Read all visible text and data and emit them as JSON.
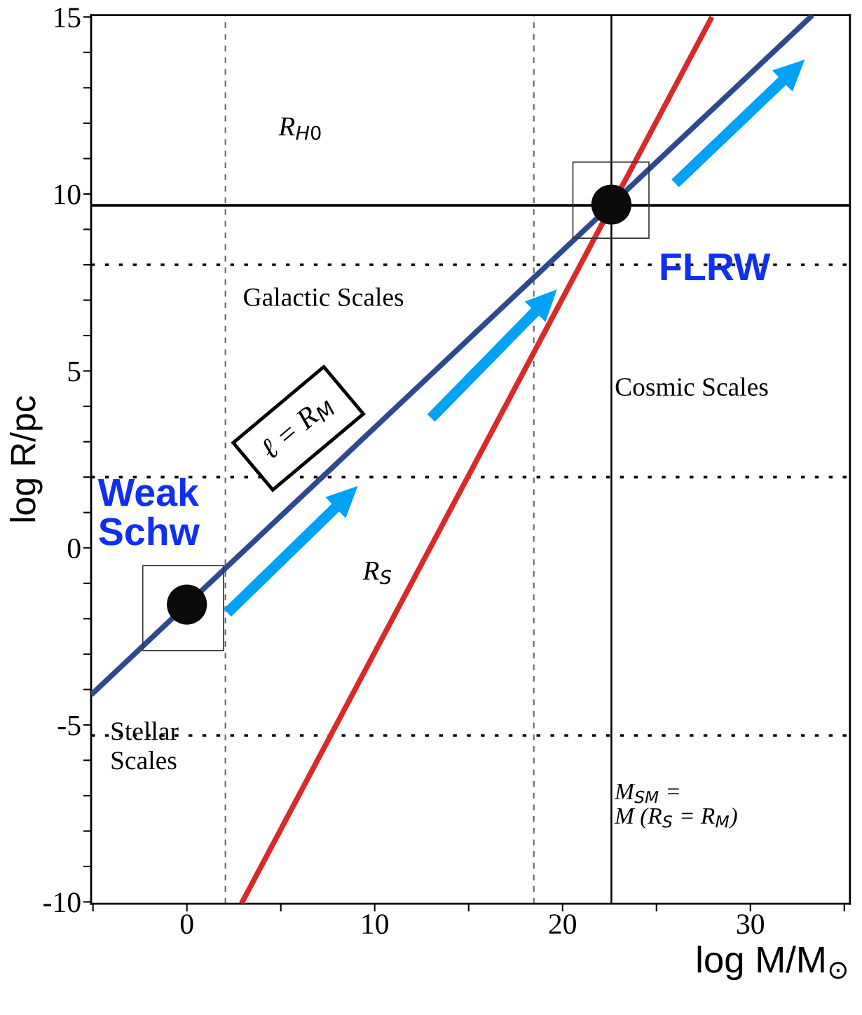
{
  "chart_data": {
    "type": "line",
    "xlabel": "log M/M$_{⊙}$",
    "ylabel": "log R/pc",
    "xlim": [
      -5.1,
      35.3
    ],
    "ylim": [
      -10.05,
      15.05
    ],
    "xticks": [
      {
        "value": -5,
        "label": null
      },
      0,
      {
        "value": 5,
        "label": null
      },
      10,
      {
        "value": 15,
        "label": null
      },
      20,
      {
        "value": 25,
        "label": null
      },
      30,
      {
        "value": 35,
        "label": null
      }
    ],
    "yticks": [
      -10,
      {
        "value": -9,
        "label": null
      },
      {
        "value": -8,
        "label": null
      },
      {
        "value": -7,
        "label": null
      },
      {
        "value": -6,
        "label": null
      },
      -5,
      {
        "value": -4,
        "label": null
      },
      {
        "value": -3,
        "label": null
      },
      {
        "value": -2,
        "label": null
      },
      {
        "value": -1,
        "label": null
      },
      0,
      {
        "value": 1,
        "label": null
      },
      {
        "value": 2,
        "label": null
      },
      {
        "value": 3,
        "label": null
      },
      {
        "value": 4,
        "label": null
      },
      5,
      {
        "value": 6,
        "label": null
      },
      {
        "value": 7,
        "label": null
      },
      {
        "value": 8,
        "label": null
      },
      {
        "value": 9,
        "label": null
      },
      10,
      {
        "value": 11,
        "label": null
      },
      {
        "value": 12,
        "label": null
      },
      {
        "value": 13,
        "label": null
      },
      {
        "value": 14,
        "label": null
      },
      15
    ],
    "grid": false,
    "legend": false,
    "series": [
      {
        "color": "#2e4a8f",
        "x": [
          -5.1,
          33.3
        ],
        "values": [
          -4.15,
          15.05
        ]
      },
      {
        "color": "#d92a2a",
        "x": [
          2.9,
          27.95
        ],
        "values": [
          -10.05,
          15.0
        ]
      },
      {
        "type": "scatter",
        "color": "#0a0a0a",
        "marker": "circle",
        "x": [
          0,
          22.6
        ],
        "values": [
          -1.6,
          9.7
        ]
      }
    ],
    "ref_lines": [
      {
        "axis": "y",
        "value": 9.68,
        "color": "#000000",
        "line_style": "solid"
      },
      {
        "axis": "x",
        "value": 22.6,
        "color": "#000000",
        "line_style": "solid"
      },
      {
        "axis": "x",
        "value": 2.05,
        "color": "#666666",
        "line_style": "dashed"
      },
      {
        "axis": "x",
        "value": 18.47,
        "color": "#666666",
        "line_style": "dashed"
      },
      {
        "axis": "y",
        "value": 8,
        "color": "#000000",
        "line_style": "dotted"
      },
      {
        "axis": "y",
        "value": 2,
        "color": "#000000",
        "line_style": "dotted"
      },
      {
        "axis": "y",
        "value": -5.3,
        "color": "#000000",
        "line_style": "dotted"
      }
    ],
    "annotations": [
      "R$_{H0}$",
      "Galactic Scales",
      "Cosmic Scales",
      "Stellar\nScales",
      "R$_{S}$",
      "M$_{SM}$ =\nM (R$_{S}$ = R$_{M}$)",
      "Weak\nSchw",
      "FLRW",
      "ℓ = R$_{M}$"
    ]
  }
}
